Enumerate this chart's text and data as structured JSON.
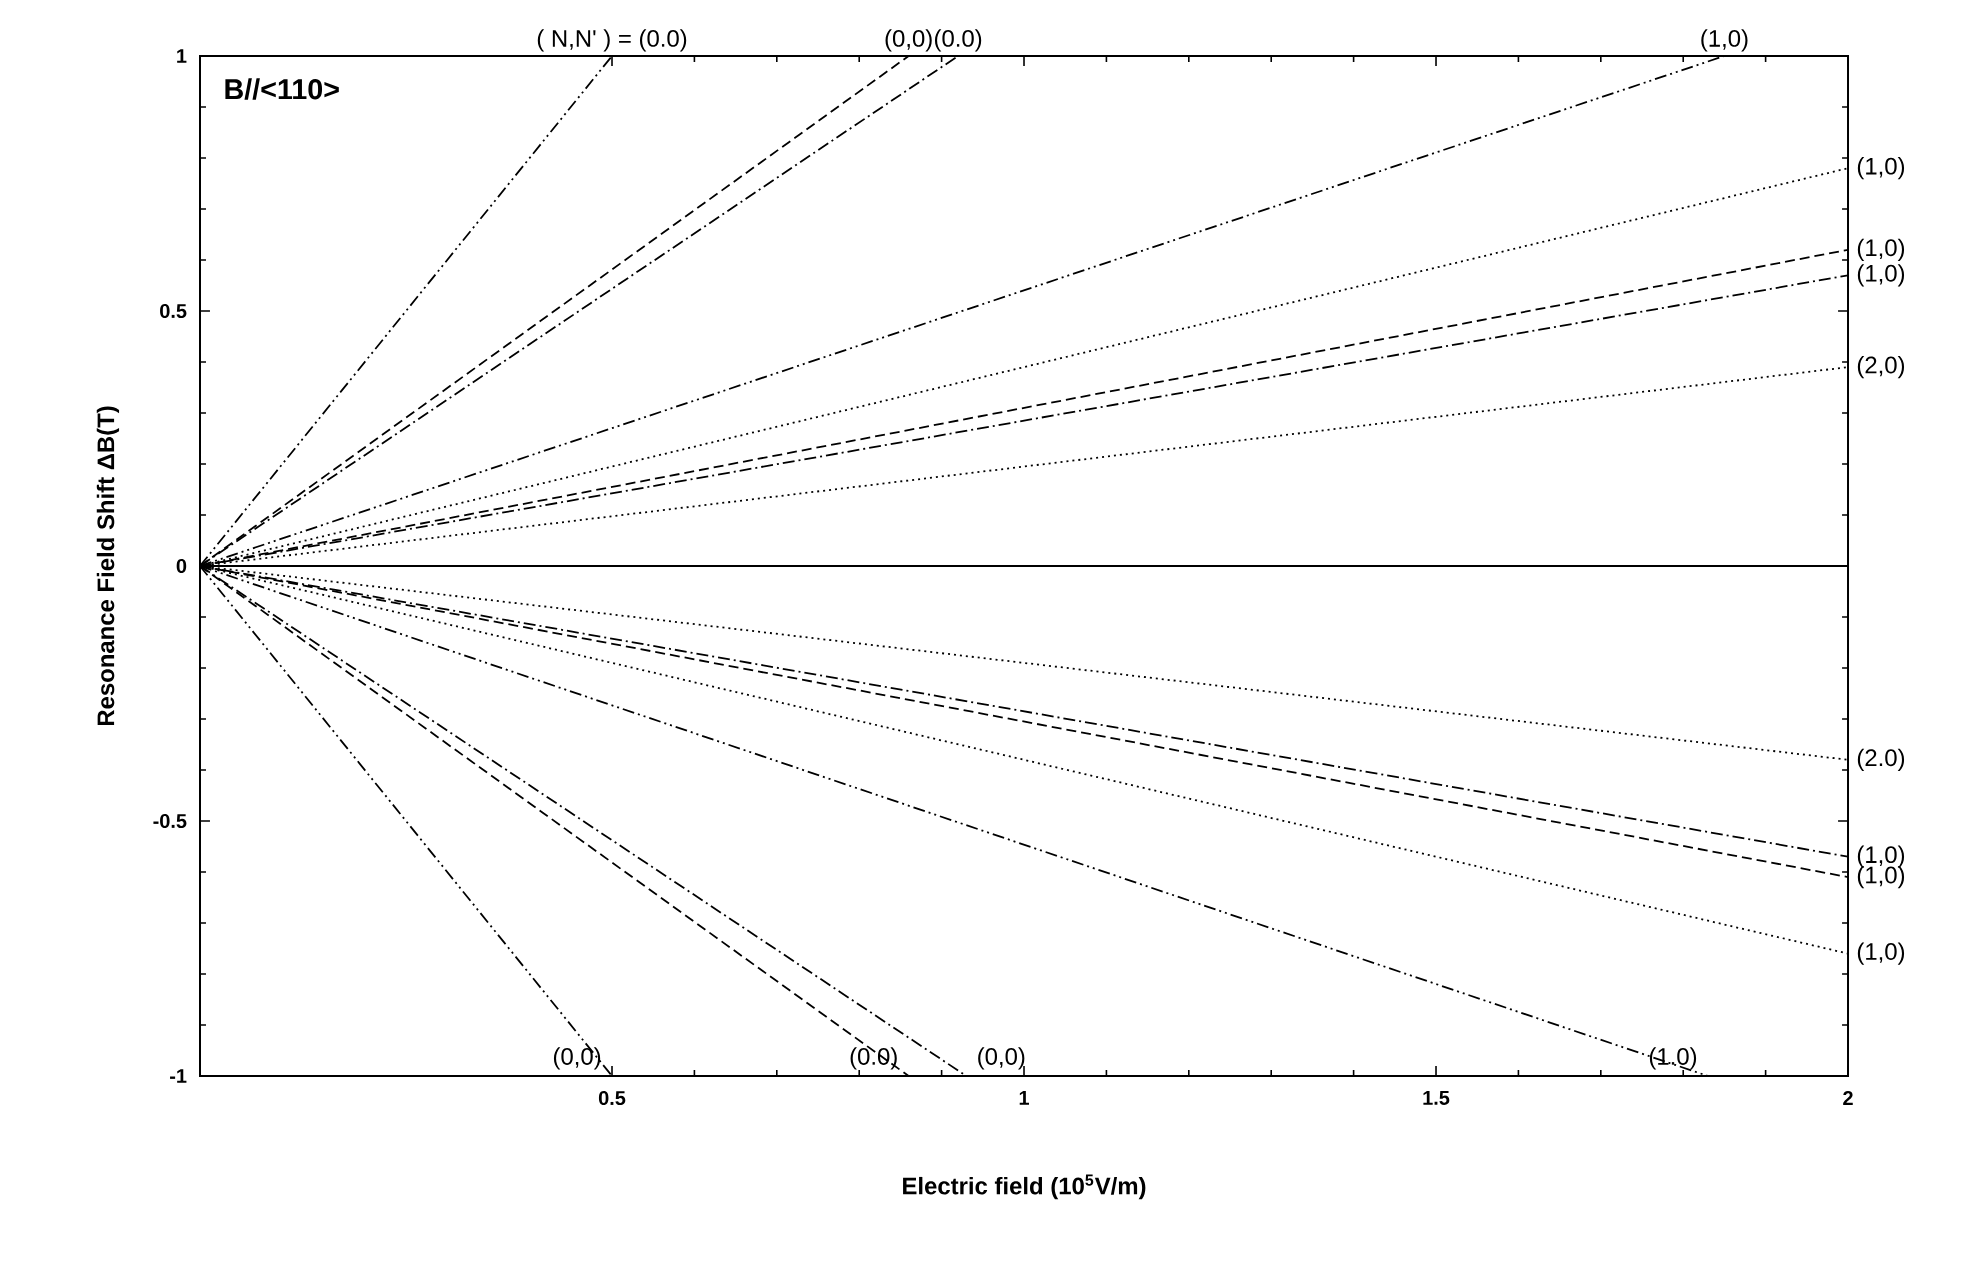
{
  "chart_data": {
    "type": "line",
    "xlabel": "Electric field (10$^{5}$V/m)",
    "ylabel": "Resonance Field Shift   ΔB(T)",
    "xlim": [
      0,
      2
    ],
    "ylim": [
      -1,
      1
    ],
    "xticks": [
      0.5,
      1,
      1.5,
      2
    ],
    "yticks": [
      -1,
      -0.5,
      0,
      0.5,
      1
    ],
    "grid": false,
    "marker": "none",
    "series": [
      {
        "color": "#000000",
        "line_style": "solid",
        "x": [
          0,
          2
        ],
        "values": [
          0,
          0
        ]
      },
      {
        "color": "#000000",
        "line_style": "dashdotdot",
        "x": [
          0,
          0.5
        ],
        "values": [
          0,
          1
        ]
      },
      {
        "color": "#000000",
        "line_style": "dashed",
        "x": [
          0,
          0.86
        ],
        "values": [
          0,
          1
        ]
      },
      {
        "color": "#000000",
        "line_style": "dashdot",
        "x": [
          0,
          0.92
        ],
        "values": [
          0,
          1
        ]
      },
      {
        "color": "#000000",
        "line_style": "dashdotdot",
        "x": [
          0,
          1.85
        ],
        "values": [
          0,
          1
        ]
      },
      {
        "color": "#000000",
        "line_style": "dotted",
        "x": [
          0,
          2
        ],
        "values": [
          0,
          0.78
        ]
      },
      {
        "color": "#000000",
        "line_style": "dashed",
        "x": [
          0,
          2
        ],
        "values": [
          0,
          0.62
        ]
      },
      {
        "color": "#000000",
        "line_style": "dashdot",
        "x": [
          0,
          2
        ],
        "values": [
          0,
          0.57
        ]
      },
      {
        "color": "#000000",
        "line_style": "dotted",
        "x": [
          0,
          2
        ],
        "values": [
          0,
          0.39
        ]
      },
      {
        "color": "#000000",
        "line_style": "dotted",
        "x": [
          0,
          2
        ],
        "values": [
          0,
          -0.38
        ]
      },
      {
        "color": "#000000",
        "line_style": "dashdot",
        "x": [
          0,
          2
        ],
        "values": [
          0,
          -0.57
        ]
      },
      {
        "color": "#000000",
        "line_style": "dashed",
        "x": [
          0,
          2
        ],
        "values": [
          0,
          -0.61
        ]
      },
      {
        "color": "#000000",
        "line_style": "dotted",
        "x": [
          0,
          2
        ],
        "values": [
          0,
          -0.76
        ]
      },
      {
        "color": "#000000",
        "line_style": "dashdotdot",
        "x": [
          0,
          1.83
        ],
        "values": [
          0,
          -1
        ]
      },
      {
        "color": "#000000",
        "line_style": "dashed",
        "x": [
          0,
          0.86
        ],
        "values": [
          0,
          -1
        ]
      },
      {
        "color": "#000000",
        "line_style": "dashdot",
        "x": [
          0,
          0.93
        ],
        "values": [
          0,
          -1
        ]
      },
      {
        "color": "#000000",
        "line_style": "dashdotdot",
        "x": [
          0,
          0.5
        ],
        "values": [
          0,
          -1
        ]
      }
    ],
    "annotations": [
      "B//<110>",
      {
        "text": "( N,N' ) = (0.0)",
        "x": 0.5,
        "y": 1
      },
      {
        "text": "(0,0)",
        "x": 0.86,
        "y": 1
      },
      {
        "text": "(0.0)",
        "x": 0.92,
        "y": 1
      },
      {
        "text": "(1,0)",
        "x": 1.85,
        "y": 1
      },
      {
        "text": "(1,0)",
        "x": 2,
        "y": 0.78
      },
      {
        "text": "(1,0)",
        "x": 2,
        "y": 0.62
      },
      {
        "text": "(1,0)",
        "x": 2,
        "y": 0.57
      },
      {
        "text": "(2,0)",
        "x": 2,
        "y": 0.39
      },
      {
        "text": "(2.0)",
        "x": 2,
        "y": -0.38
      },
      {
        "text": "(1,0)",
        "x": 2,
        "y": -0.57
      },
      {
        "text": "(1,0)",
        "x": 2,
        "y": -0.61
      },
      {
        "text": "(1,0)",
        "x": 2,
        "y": -0.76
      },
      {
        "text": "(0,0)",
        "x": 0.5,
        "y": -1
      },
      {
        "text": "(0.0)",
        "x": 0.86,
        "y": -1
      },
      {
        "text": "(0,0)",
        "x": 0.93,
        "y": -1
      },
      {
        "text": "(1.0)",
        "x": 1.83,
        "y": -1
      }
    ]
  }
}
